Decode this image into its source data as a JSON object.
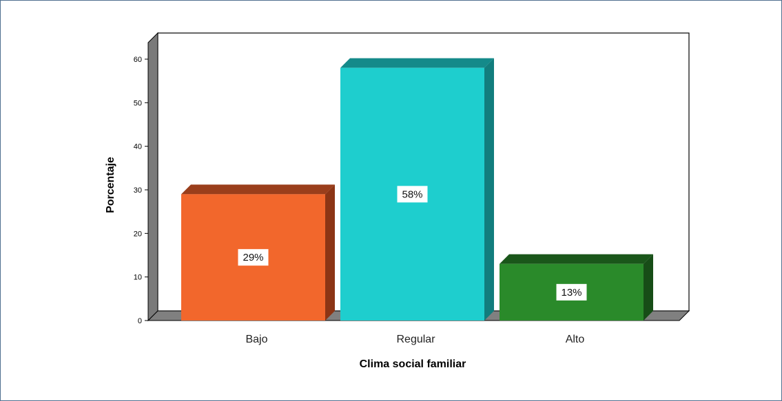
{
  "chart_data": {
    "type": "bar",
    "categories": [
      "Bajo",
      "Regular",
      "Alto"
    ],
    "values": [
      29,
      58,
      13
    ],
    "data_labels": [
      "29%",
      "58%",
      "13%"
    ],
    "xlabel": "Clima social familiar",
    "ylabel": "Porcentaje",
    "ylim": [
      0,
      60
    ],
    "yticks": [
      "0",
      "10",
      "20",
      "30",
      "40",
      "50",
      "60"
    ],
    "grid": false,
    "legend": "none",
    "style": "3d",
    "colors": {
      "Bajo": {
        "front": "#f2672c",
        "top": "#9a3e1b",
        "side": "#8c3515"
      },
      "Regular": {
        "front": "#1ecece",
        "top": "#148a8a",
        "side": "#127d7d"
      },
      "Alto": {
        "front": "#2a8a2a",
        "top": "#1a561a",
        "side": "#174d17"
      },
      "wall": "#7a7a7a",
      "floor": "#808080",
      "border": "#000000"
    }
  }
}
